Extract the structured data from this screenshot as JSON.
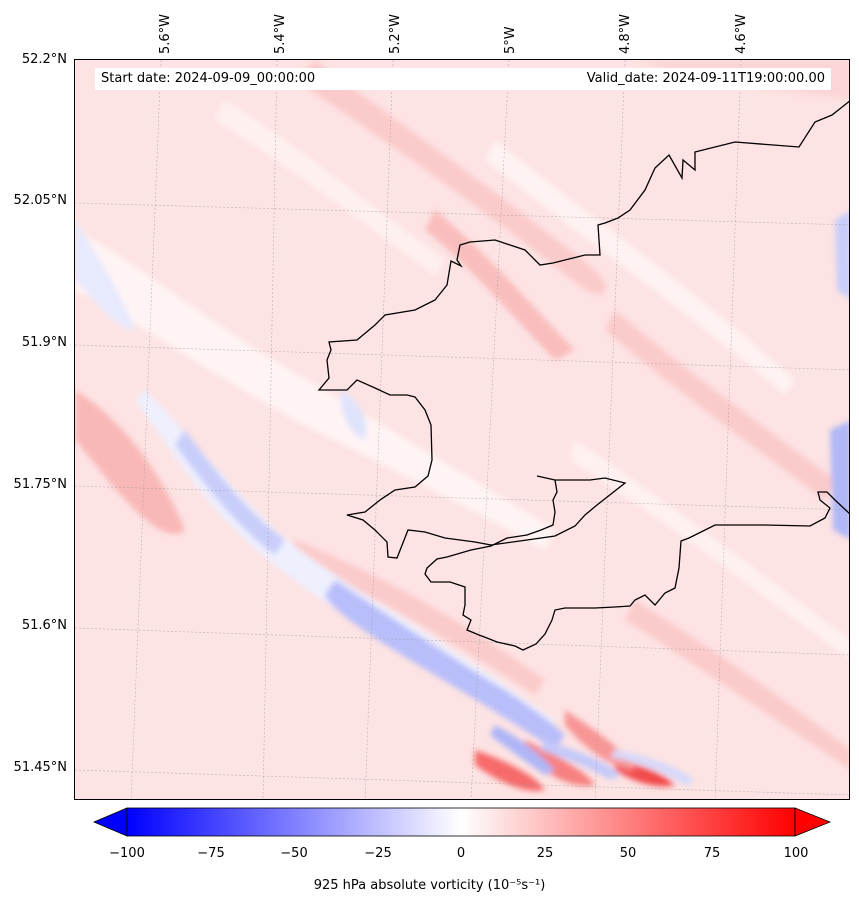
{
  "map": {
    "start_date": "Start date: 2024-09-09_00:00:00",
    "valid_date": "Valid_date: 2024-09-11T19:00:00.00",
    "lon_labels": [
      "5.6°W",
      "5.4°W",
      "5.2°W",
      "5°W",
      "4.8°W",
      "4.6°W"
    ],
    "lat_labels": [
      "52.2°N",
      "52.05°N",
      "51.9°N",
      "51.75°N",
      "51.6°N",
      "51.45°N"
    ]
  },
  "colorbar": {
    "variable": "925 hPa absolute vorticity",
    "units": "(10⁻⁵s⁻¹)",
    "ticks": [
      "−100",
      "−75",
      "−50",
      "−25",
      "0",
      "25",
      "50",
      "75",
      "100"
    ],
    "vmin": -100,
    "vmax": 100,
    "colors": {
      "negative": "#0000ff",
      "zero": "#ffffff",
      "positive": "#ff0000"
    }
  }
}
